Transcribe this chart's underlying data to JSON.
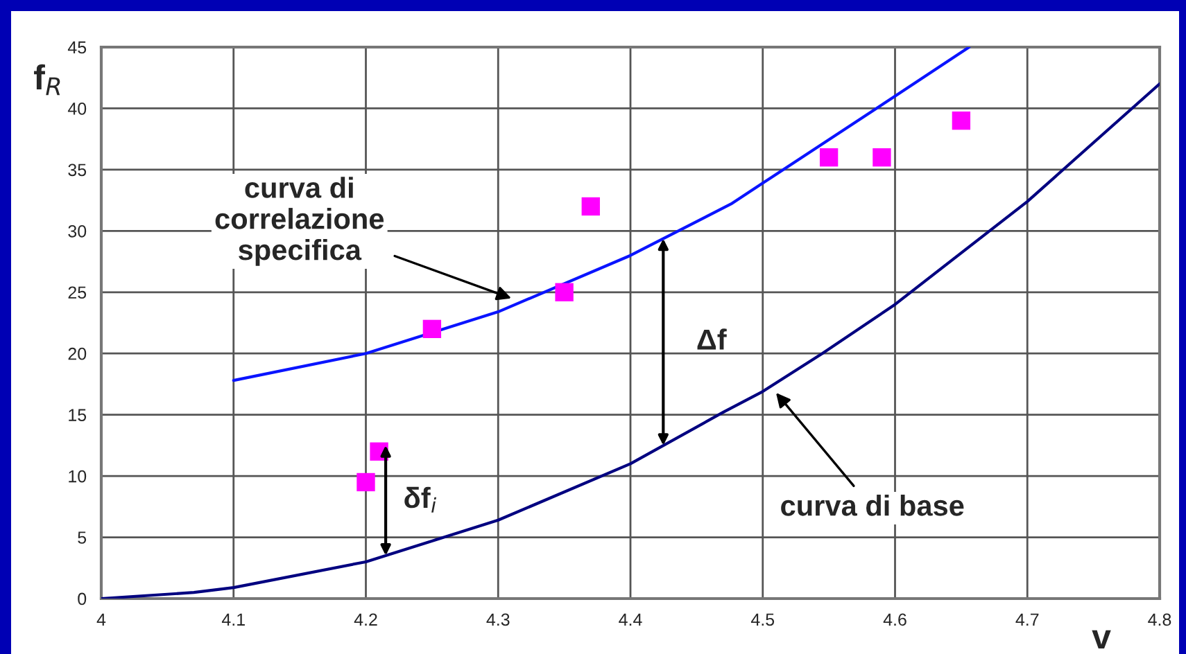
{
  "chart_data": {
    "type": "line",
    "xlabel": "v",
    "ylabel": "f$_{R}$",
    "xlim": [
      4,
      4.8
    ],
    "xticks": [
      4,
      4.1,
      4.2,
      4.3,
      4.4,
      4.5,
      4.6,
      4.7,
      4.8
    ],
    "ylim": [
      0,
      45
    ],
    "yticks": [
      0,
      5,
      10,
      15,
      20,
      25,
      30,
      35,
      40,
      45
    ],
    "grid": true,
    "series": [
      {
        "color": "#0a14ff",
        "marker": "none",
        "x": [
          4.1,
          4.2,
          4.3,
          4.4,
          4.476,
          4.5,
          4.6,
          4.656
        ],
        "values": [
          17.8,
          20.0,
          23.4,
          28.0,
          32.2,
          33.9,
          41.0,
          45.0
        ]
      },
      {
        "color": "#000080",
        "marker": "none",
        "x": [
          4.0,
          4.07,
          4.1,
          4.2,
          4.3,
          4.4,
          4.47,
          4.5,
          4.545,
          4.6,
          4.7,
          4.8
        ],
        "values": [
          0,
          0.5,
          0.9,
          3.0,
          6.4,
          11.0,
          15.2,
          16.9,
          20.0,
          24.0,
          32.4,
          42.0
        ]
      },
      {
        "type": "scatter",
        "color": "#ff00ff",
        "marker": "square",
        "x": [
          4.2,
          4.21,
          4.25,
          4.35,
          4.37,
          4.55,
          4.59,
          4.65
        ],
        "values": [
          9.5,
          12,
          22,
          25,
          32,
          36,
          36,
          39
        ]
      }
    ],
    "annotations": [
      {
        "text": "curva di\ncorrelazione\nspecifica",
        "x": 4.31,
        "y": 24.5
      },
      {
        "text": "curva di base",
        "x": 4.51,
        "y": 16.8
      },
      "Δf",
      {
        "text": "δf$_{i}$",
        "x": 4.215,
        "y": 12.5
      }
    ]
  }
}
